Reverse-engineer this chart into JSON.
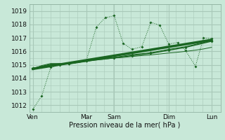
{
  "bg_color": "#c8e8d8",
  "grid_color": "#a8c8b8",
  "line_color": "#1a6622",
  "xlabel": "Pression niveau de la mer( hPa )",
  "ylim": [
    1011.5,
    1019.5
  ],
  "yticks": [
    1012,
    1013,
    1014,
    1015,
    1016,
    1017,
    1018,
    1019
  ],
  "day_labels": [
    "Ven",
    "Mar",
    "Sam",
    "Dim",
    "Lun"
  ],
  "day_positions": [
    0.0,
    0.3,
    0.455,
    0.76,
    1.0
  ],
  "xlim": [
    -0.02,
    1.05
  ],
  "line1_x": [
    0.0,
    0.05,
    0.1,
    0.15,
    0.2,
    0.3,
    0.355,
    0.405,
    0.455,
    0.505,
    0.555,
    0.61,
    0.66,
    0.71,
    0.76,
    0.81,
    0.855,
    0.91,
    0.955,
    1.0
  ],
  "line1_y": [
    1011.7,
    1012.7,
    1014.8,
    1015.0,
    1015.1,
    1015.35,
    1017.8,
    1018.5,
    1018.65,
    1016.6,
    1016.15,
    1016.35,
    1018.15,
    1017.95,
    1016.55,
    1016.65,
    1016.05,
    1014.9,
    1017.0,
    1016.95
  ],
  "line2_x": [
    0.0,
    0.1,
    0.2,
    0.3,
    0.4,
    0.455,
    0.555,
    0.66,
    0.76,
    0.855,
    1.0
  ],
  "line2_y": [
    1014.75,
    1015.05,
    1015.1,
    1015.3,
    1015.5,
    1015.55,
    1015.75,
    1015.9,
    1016.15,
    1016.35,
    1016.8
  ],
  "line3_x": [
    0.0,
    0.05,
    0.1,
    0.15,
    0.2,
    0.25,
    0.3,
    0.35,
    0.4,
    0.455,
    0.505,
    0.555,
    0.605,
    0.655,
    0.705,
    0.755,
    0.805,
    0.855,
    0.905,
    0.955,
    1.0
  ],
  "line3_y": [
    1014.7,
    1014.95,
    1015.1,
    1015.1,
    1015.05,
    1015.15,
    1015.25,
    1015.35,
    1015.42,
    1015.5,
    1015.55,
    1015.62,
    1015.68,
    1015.73,
    1015.8,
    1015.87,
    1015.93,
    1016.0,
    1016.08,
    1016.18,
    1016.3
  ],
  "line4_x": [
    0.0,
    0.1,
    0.2,
    0.3,
    0.455,
    0.555,
    0.66,
    0.76,
    0.855,
    1.0
  ],
  "line4_y": [
    1014.72,
    1015.0,
    1015.08,
    1015.28,
    1015.52,
    1015.68,
    1015.85,
    1016.08,
    1016.3,
    1016.75
  ],
  "line5_x": [
    0.0,
    1.0
  ],
  "line5_y": [
    1014.7,
    1016.85
  ]
}
